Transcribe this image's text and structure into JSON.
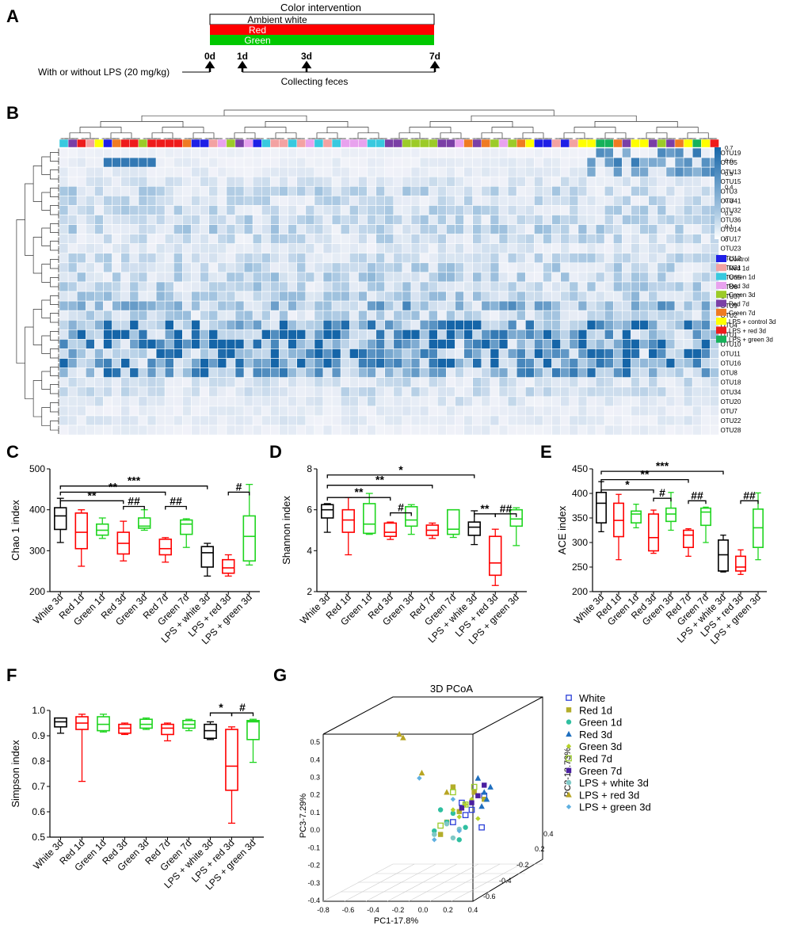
{
  "panel_labels": [
    "A",
    "B",
    "C",
    "D",
    "E",
    "F",
    "G"
  ],
  "colors": {
    "red": "#ff0000",
    "green": "#1fd51f",
    "black": "#000000",
    "heat_hi": "#1565a8",
    "heat_lo": "#f2f3f9"
  },
  "panelA": {
    "title": "Color intervention",
    "bars": [
      {
        "label": "Ambient white",
        "color": "#ffffff"
      },
      {
        "label": "Red",
        "color": "#ff0000"
      },
      {
        "label": "Green",
        "color": "#00c800"
      }
    ],
    "lps_text": "With or without LPS (20 mg/kg)",
    "days": [
      "0d",
      "1d",
      "3d",
      "7d"
    ],
    "collect_text": "Collecting feces"
  },
  "chart_data": [
    {
      "panel": "B",
      "type": "heatmap",
      "otus": [
        "OTU19",
        "OTU5",
        "OTU13",
        "OTU15",
        "OTU3",
        "OTU41",
        "OTU32",
        "OTU36",
        "OTU14",
        "OTU17",
        "OTU23",
        "OTU12",
        "OTU21",
        "OTU65",
        "OTU6",
        "OTU37",
        "OTU9",
        "OTU2",
        "OTU4",
        "OTU1",
        "OTU10",
        "OTU11",
        "OTU16",
        "OTU8",
        "OTU18",
        "OTU34",
        "OTU20",
        "OTU7",
        "OTU22",
        "OTU28"
      ],
      "otu_means": [
        0.03,
        0.06,
        0.08,
        0.07,
        0.14,
        0.12,
        0.13,
        0.14,
        0.15,
        0.12,
        0.06,
        0.12,
        0.15,
        0.17,
        0.16,
        0.17,
        0.3,
        0.15,
        0.5,
        0.55,
        0.55,
        0.45,
        0.45,
        0.4,
        0.1,
        0.1,
        0.08,
        0.04,
        0.05,
        0.03
      ],
      "column_groups": [
        3,
        6,
        9,
        2,
        8,
        1,
        7,
        9,
        9,
        5,
        9,
        9,
        9,
        9,
        7,
        1,
        1,
        2,
        4,
        5,
        6,
        4,
        1,
        3,
        2,
        2,
        3,
        2,
        4,
        3,
        2,
        3,
        4,
        4,
        4,
        3,
        3,
        6,
        6,
        5,
        5,
        5,
        5,
        6,
        6,
        4,
        7,
        6,
        7,
        5,
        4,
        5,
        7,
        8,
        1,
        1,
        2,
        1,
        2,
        8,
        8,
        10,
        10,
        7,
        6,
        8,
        8,
        6,
        5,
        6,
        7,
        8,
        10,
        8,
        9
      ],
      "legend": [
        "Control",
        "Red 1d",
        "Green 1d",
        "Red 3d",
        "Green 3d",
        "Red 7d",
        "Green 7d",
        "LPS + control 3d",
        "LPS + red 3d",
        "LPS + green 3d"
      ],
      "legend_colors": [
        "#1f1fe6",
        "#f3a2a2",
        "#38c9df",
        "#e8a2ee",
        "#9ccb28",
        "#7a3fa6",
        "#ef7b22",
        "#ffff00",
        "#ee1c1c",
        "#16b25a"
      ],
      "scale_ticks": [
        "0.7",
        "0.6",
        "0.5",
        "0.4",
        "0.3",
        "0.2",
        "0.1",
        "0"
      ],
      "scale_range": [
        0,
        0.7
      ]
    },
    {
      "panel": "C",
      "type": "boxplot",
      "ylabel": "Chao 1 index",
      "ylim": [
        200,
        500
      ],
      "yticks": [
        "200",
        "300",
        "400",
        "500"
      ],
      "categories": [
        "White 3d",
        "Red 1d",
        "Green 1d",
        "Red 3d",
        "Green 3d",
        "Red 7d",
        "Green 7d",
        "LPS + white 3d",
        "LPS + red 3d",
        "LPS + green 3d"
      ],
      "series_colors": [
        "black",
        "red",
        "green",
        "red",
        "green",
        "red",
        "green",
        "black",
        "red",
        "green"
      ],
      "boxes": [
        [
          320,
          352,
          385,
          405,
          428
        ],
        [
          262,
          305,
          345,
          392,
          400
        ],
        [
          330,
          338,
          350,
          365,
          380
        ],
        [
          275,
          292,
          318,
          345,
          372
        ],
        [
          350,
          355,
          360,
          380,
          400
        ],
        [
          272,
          290,
          305,
          328,
          332
        ],
        [
          308,
          340,
          365,
          375,
          378
        ],
        [
          238,
          260,
          295,
          310,
          318
        ],
        [
          238,
          245,
          258,
          278,
          290
        ],
        [
          265,
          275,
          335,
          385,
          462
        ]
      ],
      "brackets": [
        {
          "from": 0,
          "to": 7,
          "label": "***",
          "y": 458,
          "long": true
        },
        {
          "from": 0,
          "to": 5,
          "label": "**",
          "y": 443,
          "long": true
        },
        {
          "from": 0,
          "to": 3,
          "label": "**",
          "y": 422,
          "long": true
        },
        {
          "from": 3,
          "to": 4,
          "label": "##",
          "y": 408
        },
        {
          "from": 5,
          "to": 6,
          "label": "##",
          "y": 408
        },
        {
          "from": 8,
          "to": 9,
          "label": "#",
          "y": 443
        }
      ]
    },
    {
      "panel": "D",
      "type": "boxplot",
      "ylabel": "Shannon index",
      "ylim": [
        2,
        8
      ],
      "yticks": [
        "2",
        "4",
        "6",
        "8"
      ],
      "categories": [
        "White 3d",
        "Red 1d",
        "Green 1d",
        "Red 3d",
        "Green 3d",
        "Red 7d",
        "Green 7d",
        "LPS + white 3d",
        "LPS + red 3d",
        "LPS + green 3d"
      ],
      "series_colors": [
        "black",
        "red",
        "green",
        "red",
        "green",
        "red",
        "green",
        "black",
        "red",
        "green"
      ],
      "boxes": [
        [
          4.9,
          5.6,
          6.0,
          6.25,
          6.3
        ],
        [
          3.8,
          4.9,
          5.5,
          6.0,
          6.6
        ],
        [
          4.8,
          4.85,
          5.3,
          6.3,
          6.8
        ],
        [
          4.55,
          4.7,
          4.9,
          5.35,
          5.4
        ],
        [
          4.8,
          5.2,
          5.5,
          6.15,
          6.25
        ],
        [
          4.6,
          4.75,
          5.0,
          5.25,
          5.35
        ],
        [
          4.65,
          4.8,
          5.05,
          6.0,
          6.0
        ],
        [
          4.3,
          4.75,
          5.15,
          5.4,
          5.95
        ],
        [
          2.3,
          2.8,
          3.4,
          4.7,
          5.05
        ],
        [
          4.25,
          5.2,
          5.55,
          6.0,
          6.1
        ]
      ],
      "brackets": [
        {
          "from": 0,
          "to": 7,
          "label": "*",
          "y": 7.7,
          "long": true
        },
        {
          "from": 0,
          "to": 5,
          "label": "**",
          "y": 7.2,
          "long": true
        },
        {
          "from": 0,
          "to": 3,
          "label": "**",
          "y": 6.6,
          "long": true
        },
        {
          "from": 3,
          "to": 4,
          "label": "#",
          "y": 5.85
        },
        {
          "from": 7,
          "to": 8,
          "label": "**",
          "y": 5.8
        },
        {
          "from": 8,
          "to": 9,
          "label": "##",
          "y": 5.8
        }
      ]
    },
    {
      "panel": "E",
      "type": "boxplot",
      "ylabel": "ACE index",
      "ylim": [
        200,
        450
      ],
      "yticks": [
        "200",
        "250",
        "300",
        "350",
        "400",
        "450"
      ],
      "categories": [
        "White 3d",
        "Red 1d",
        "Green 1d",
        "Red 3d",
        "Green 3d",
        "Red 7d",
        "Green 7d",
        "LPS + white 3d",
        "LPS + red 3d",
        "LPS + green 3d"
      ],
      "series_colors": [
        "black",
        "red",
        "green",
        "red",
        "green",
        "red",
        "green",
        "black",
        "red",
        "green"
      ],
      "boxes": [
        [
          322,
          340,
          380,
          402,
          424
        ],
        [
          265,
          312,
          345,
          380,
          398
        ],
        [
          330,
          340,
          358,
          364,
          378
        ],
        [
          278,
          283,
          310,
          358,
          366
        ],
        [
          325,
          343,
          358,
          370,
          402
        ],
        [
          272,
          290,
          315,
          325,
          328
        ],
        [
          300,
          335,
          362,
          370,
          372
        ],
        [
          240,
          242,
          275,
          305,
          315
        ],
        [
          235,
          242,
          250,
          272,
          285
        ],
        [
          265,
          290,
          330,
          368,
          401
        ]
      ],
      "brackets": [
        {
          "from": 0,
          "to": 7,
          "label": "***",
          "y": 445,
          "long": true
        },
        {
          "from": 0,
          "to": 5,
          "label": "**",
          "y": 428,
          "long": true
        },
        {
          "from": 0,
          "to": 3,
          "label": "*",
          "y": 407,
          "long": true
        },
        {
          "from": 3,
          "to": 4,
          "label": "#",
          "y": 390
        },
        {
          "from": 5,
          "to": 6,
          "label": "##",
          "y": 385
        },
        {
          "from": 8,
          "to": 9,
          "label": "##",
          "y": 385
        }
      ]
    },
    {
      "panel": "F",
      "type": "boxplot",
      "ylabel": "Simpson index",
      "ylim": [
        0.5,
        1.0
      ],
      "yticks": [
        "0.5",
        "0.6",
        "0.7",
        "0.8",
        "0.9",
        "1.0"
      ],
      "categories": [
        "White 3d",
        "Red 1d",
        "Green 1d",
        "Red 3d",
        "Green 3d",
        "Red 7d",
        "Green 7d",
        "LPS + white 3d",
        "LPS + red 3d",
        "LPS + green 3d"
      ],
      "series_colors": [
        "black",
        "red",
        "green",
        "red",
        "green",
        "red",
        "green",
        "black",
        "red",
        "green"
      ],
      "boxes": [
        [
          0.91,
          0.935,
          0.955,
          0.97,
          0.97
        ],
        [
          0.72,
          0.925,
          0.95,
          0.975,
          0.985
        ],
        [
          0.915,
          0.92,
          0.945,
          0.975,
          0.985
        ],
        [
          0.905,
          0.91,
          0.93,
          0.945,
          0.95
        ],
        [
          0.925,
          0.93,
          0.945,
          0.965,
          0.97
        ],
        [
          0.88,
          0.905,
          0.93,
          0.945,
          0.95
        ],
        [
          0.92,
          0.93,
          0.945,
          0.96,
          0.965
        ],
        [
          0.885,
          0.89,
          0.92,
          0.945,
          0.955
        ],
        [
          0.555,
          0.685,
          0.78,
          0.925,
          0.935
        ],
        [
          0.795,
          0.885,
          0.955,
          0.96,
          0.965
        ]
      ],
      "brackets": [
        {
          "from": 7,
          "to": 8,
          "label": "*",
          "y": 0.99
        },
        {
          "from": 8,
          "to": 9,
          "label": "#",
          "y": 0.99
        }
      ]
    },
    {
      "panel": "G",
      "type": "scatter",
      "title": "3D PCoA",
      "xlabel": "PC1-17.8%",
      "ylabel": "PC3-7.29%",
      "zlabel": "PC2-13.73%",
      "xticks": [
        "-0.8",
        "-0.6",
        "-0.4",
        "-0.2",
        "0.0",
        "0.2",
        "0.4"
      ],
      "yticks": [
        "-0.4",
        "-0.3",
        "-0.2",
        "-0.1",
        "0.0",
        "0.1",
        "0.2",
        "0.3",
        "0.4",
        "0.5"
      ],
      "zticks": [
        "-0.6",
        "-0.4",
        "-0.2",
        "0.2",
        "0.4"
      ],
      "legend": [
        "White",
        "Red 1d",
        "Green 1d",
        "Red 3d",
        "Green 3d",
        "Red 7d",
        "Green 7d",
        "LPS + white 3d",
        "LPS + red 3d",
        "LPS + green 3d"
      ],
      "legend_colors": [
        "#2b3fd8",
        "#b3ad2a",
        "#2fbfa0",
        "#1f6fbf",
        "#b5d22a",
        "#9acb2b",
        "#4a1fa0",
        "#7fc8c6",
        "#b8a523",
        "#5fb0e0"
      ],
      "legend_markers": [
        "square-open",
        "square",
        "circle",
        "triangle",
        "diamond",
        "square-open",
        "square",
        "circle",
        "triangle",
        "diamond"
      ],
      "groups": [
        {
          "pc1": [
            0.12,
            0.2,
            0.28,
            0.05,
            0.3,
            0.15
          ],
          "pc3": [
            0.16,
            0.12,
            0.02,
            0.05,
            0.2,
            0.09
          ]
        },
        {
          "pc1": [
            0.0,
            -0.05,
            0.1,
            0.22,
            0.05,
            0.3
          ],
          "pc3": [
            0.05,
            -0.02,
            0.11,
            0.22,
            0.25,
            0.18
          ]
        },
        {
          "pc1": [
            -0.1,
            0.0,
            0.1,
            0.05,
            0.15,
            -0.05
          ],
          "pc3": [
            0.0,
            0.05,
            -0.05,
            0.1,
            0.02,
            0.12
          ]
        },
        {
          "pc1": [
            0.3,
            0.32,
            0.35,
            0.25,
            0.28
          ],
          "pc3": [
            0.22,
            0.18,
            0.25,
            0.3,
            0.14
          ]
        },
        {
          "pc1": [
            0.05,
            0.1,
            0.15,
            0.2,
            0.25
          ],
          "pc3": [
            0.12,
            0.08,
            0.15,
            0.18,
            0.07
          ]
        },
        {
          "pc1": [
            0.05,
            0.15,
            -0.05,
            0.22
          ],
          "pc3": [
            0.22,
            0.15,
            0.03,
            0.25
          ]
        },
        {
          "pc1": [
            0.12,
            0.2,
            0.25,
            0.3
          ],
          "pc3": [
            0.13,
            0.16,
            0.2,
            0.26
          ]
        },
        {
          "pc1": [
            -0.1,
            0.0,
            0.05,
            0.1
          ],
          "pc3": [
            -0.02,
            0.04,
            -0.04,
            0.01
          ]
        },
        {
          "pc1": [
            -0.38,
            -0.35,
            -0.2,
            0.0
          ],
          "pc3": [
            0.55,
            0.53,
            0.33,
            0.22
          ]
        },
        {
          "pc1": [
            -0.22,
            -0.1,
            0.05,
            0.1
          ],
          "pc3": [
            0.3,
            -0.05,
            0.18,
            0.0
          ]
        }
      ]
    }
  ]
}
